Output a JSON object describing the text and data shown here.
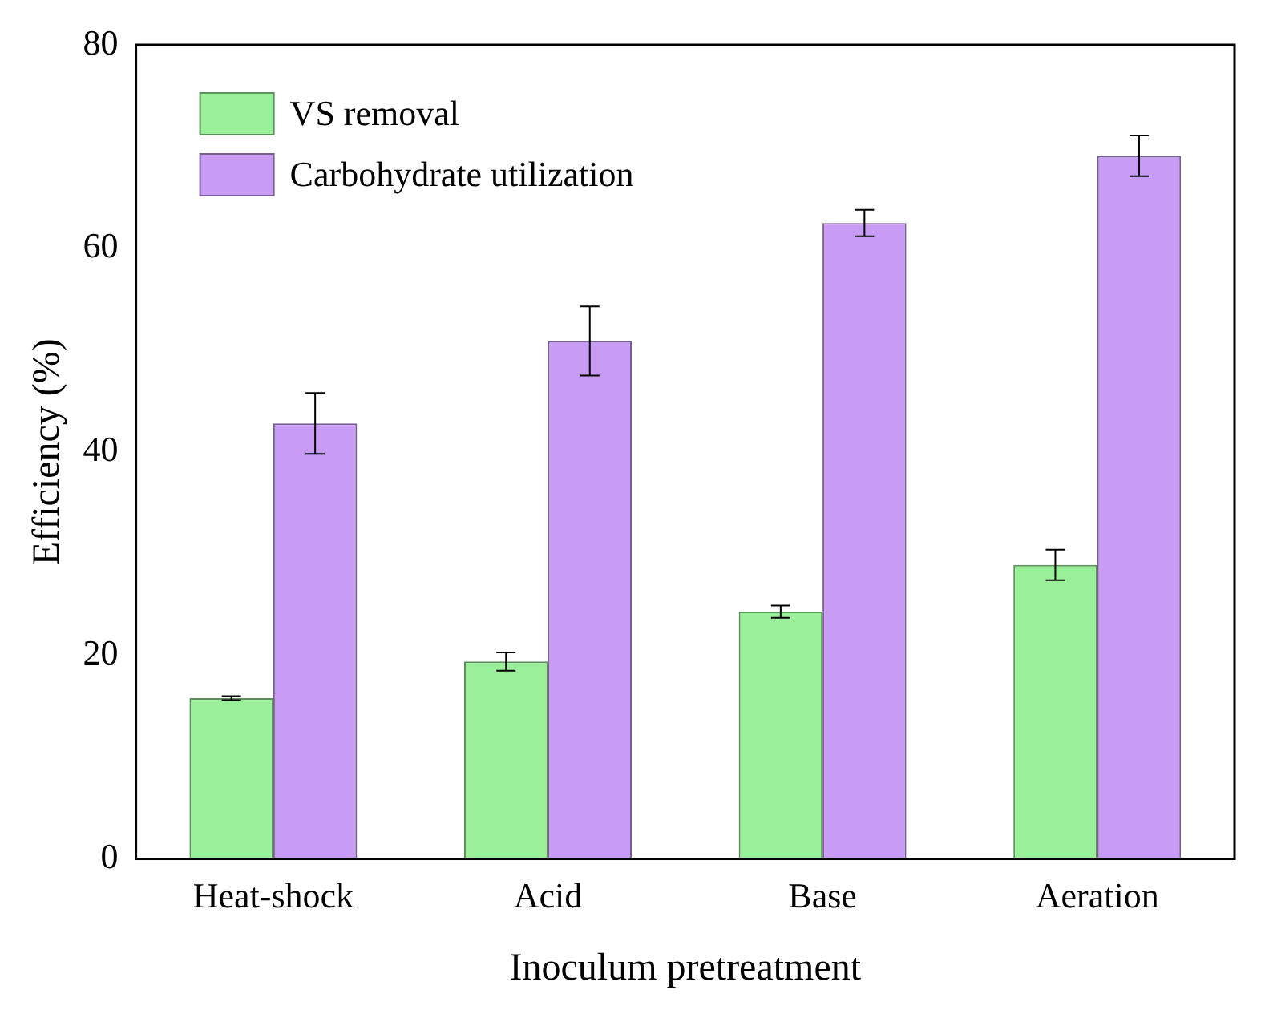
{
  "chart_data": {
    "type": "bar",
    "xlabel": "Inoculum pretreatment",
    "ylabel": "Efficiency (%)",
    "categories": [
      "Heat-shock",
      "Acid",
      "Base",
      "Aeration"
    ],
    "series": [
      {
        "name": "VS removal",
        "color": "#99f099",
        "values": [
          15.8,
          19.4,
          24.3,
          28.9
        ],
        "errors": [
          0.2,
          0.9,
          0.6,
          1.5
        ]
      },
      {
        "name": "Carbohydrate utilization",
        "color": "#c89cf5",
        "values": [
          42.8,
          50.9,
          62.5,
          69.1
        ],
        "errors": [
          3,
          3.4,
          1.3,
          2
        ]
      }
    ],
    "ylim": [
      0,
      80
    ],
    "yticks": [
      0,
      20,
      40,
      60,
      80
    ],
    "grid": false,
    "legend": "top left"
  }
}
